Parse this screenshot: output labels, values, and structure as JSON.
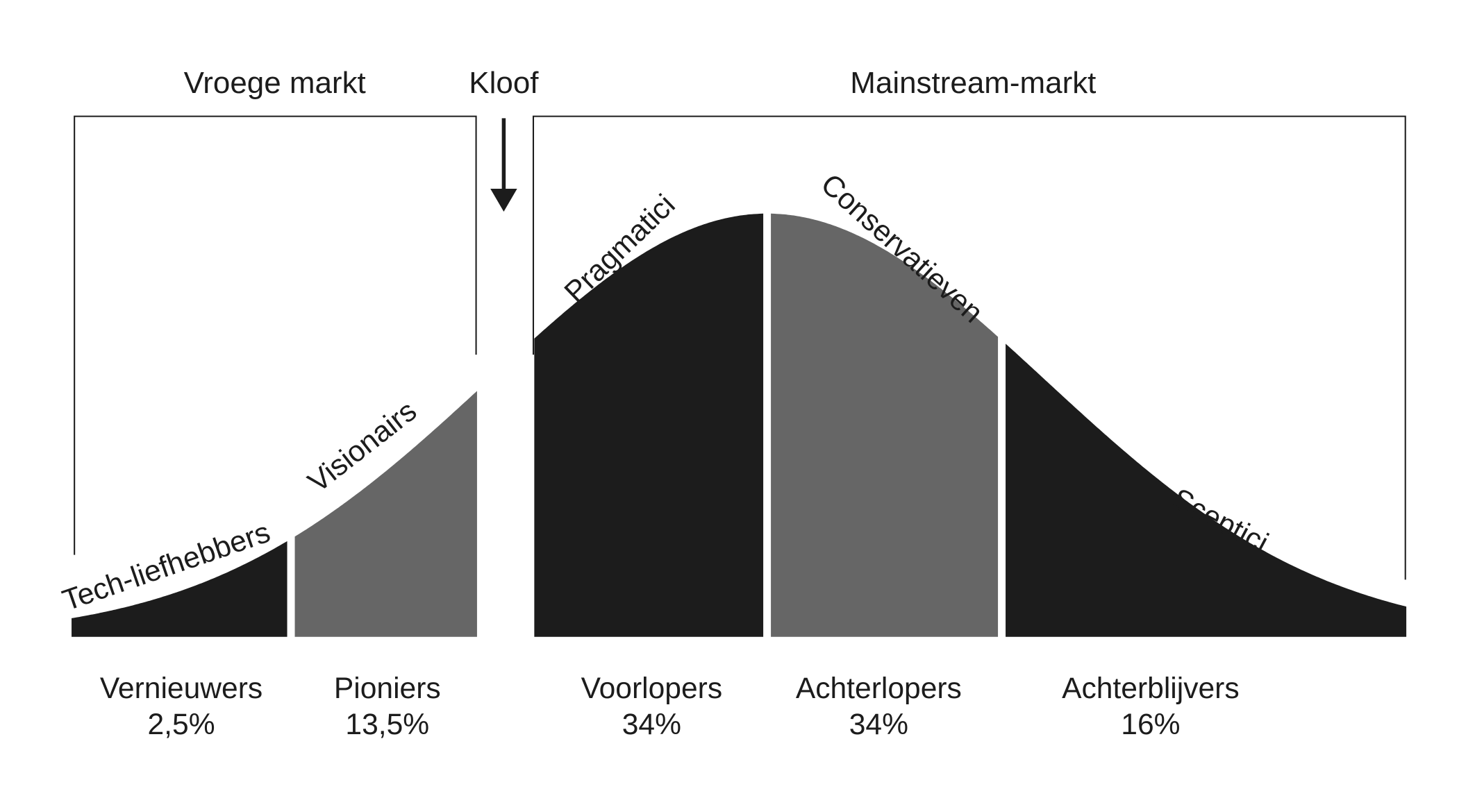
{
  "headers": {
    "early_market": "Vroege markt",
    "chasm": "Kloof",
    "mainstream_market": "Mainstream-markt"
  },
  "segments": [
    {
      "name": "Vernieuwers",
      "share": "2,5%",
      "curve_label": "Tech-liefhebbers"
    },
    {
      "name": "Pioniers",
      "share": "13,5%",
      "curve_label": "Visionairs"
    },
    {
      "name": "Voorlopers",
      "share": "34%",
      "curve_label": "Pragmatici"
    },
    {
      "name": "Achterlopers",
      "share": "34%",
      "curve_label": "Conservatieven"
    },
    {
      "name": "Achterblijvers",
      "share": "16%",
      "curve_label": "Sceptici"
    }
  ]
}
